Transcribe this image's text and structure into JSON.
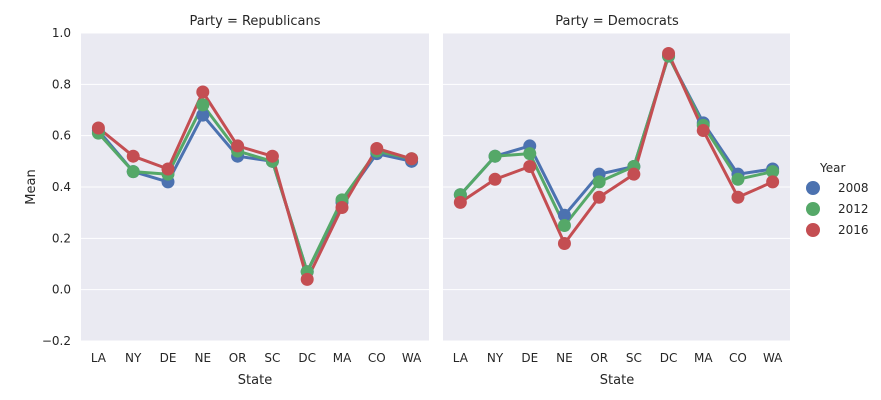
{
  "chart_data": {
    "type": "line",
    "ylabel": "Mean",
    "xlabel": "State",
    "ylim": [
      -0.2,
      1.0
    ],
    "yticks": [
      "−0.2",
      "0.0",
      "0.2",
      "0.4",
      "0.6",
      "0.8",
      "1.0"
    ],
    "yticks_values": [
      -0.2,
      0.0,
      0.2,
      0.4,
      0.6,
      0.8,
      1.0
    ],
    "grid": true,
    "categories": [
      "LA",
      "NY",
      "DE",
      "NE",
      "OR",
      "SC",
      "DC",
      "MA",
      "CO",
      "WA"
    ],
    "legend": {
      "title": "Year",
      "position": "right",
      "entries": [
        "2008",
        "2012",
        "2016"
      ],
      "colors": [
        "#4c72b0",
        "#55a868",
        "#c44e52"
      ]
    },
    "panels": [
      {
        "title": "Party = Republicans",
        "series": [
          {
            "name": "2008",
            "values": [
              0.62,
              0.46,
              0.42,
              0.68,
              0.52,
              0.5,
              0.07,
              0.34,
              0.53,
              0.5
            ]
          },
          {
            "name": "2012",
            "values": [
              0.61,
              0.46,
              0.45,
              0.72,
              0.54,
              0.5,
              0.07,
              0.35,
              0.54,
              0.51
            ]
          },
          {
            "name": "2016",
            "values": [
              0.63,
              0.52,
              0.47,
              0.77,
              0.56,
              0.52,
              0.04,
              0.32,
              0.55,
              0.51
            ]
          }
        ]
      },
      {
        "title": "Party = Democrats",
        "series": [
          {
            "name": "2008",
            "values": [
              0.37,
              0.52,
              0.56,
              0.29,
              0.45,
              0.48,
              0.91,
              0.65,
              0.45,
              0.47
            ]
          },
          {
            "name": "2012",
            "values": [
              0.37,
              0.52,
              0.53,
              0.25,
              0.42,
              0.48,
              0.91,
              0.64,
              0.43,
              0.46
            ]
          },
          {
            "name": "2016",
            "values": [
              0.34,
              0.43,
              0.48,
              0.18,
              0.36,
              0.45,
              0.92,
              0.62,
              0.36,
              0.42
            ]
          }
        ]
      }
    ]
  }
}
